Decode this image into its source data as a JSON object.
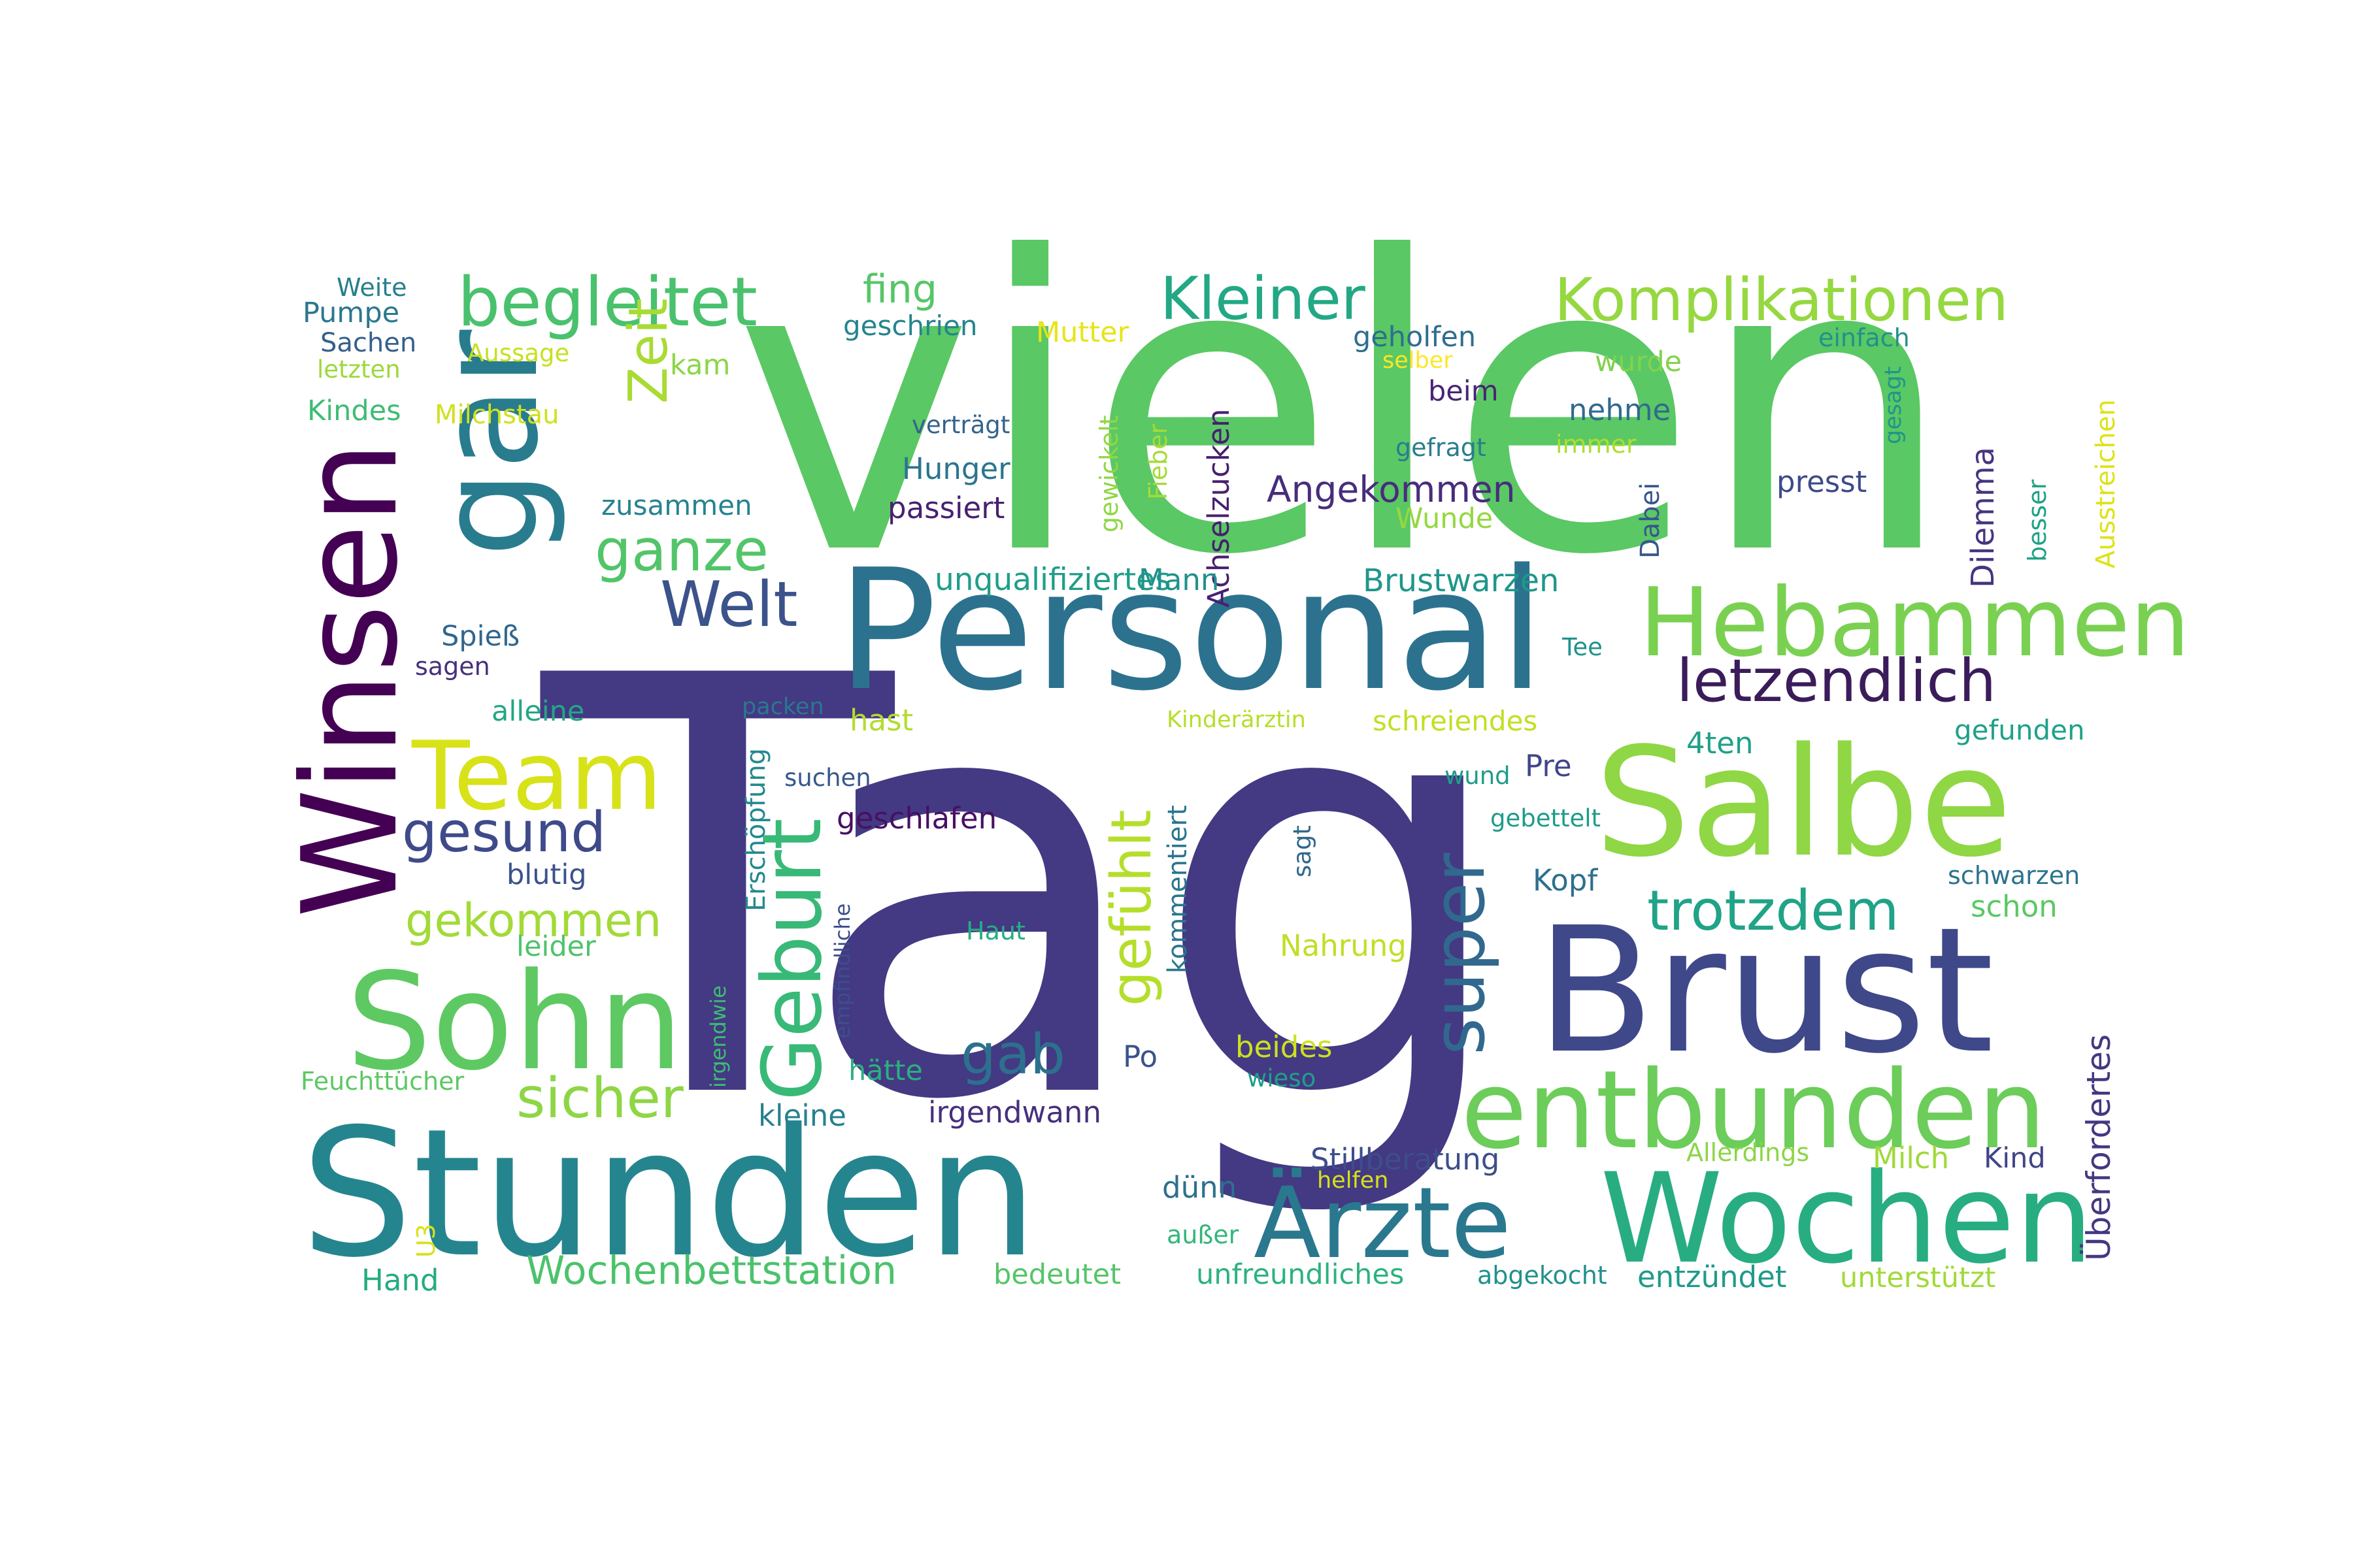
{
  "words": [
    {
      "text": "vielen",
      "color": "#5ac864"
    },
    {
      "text": "Tag",
      "color": "#443983"
    },
    {
      "text": "Personal",
      "color": "#2c728e"
    },
    {
      "text": "Stunden",
      "color": "#25858e"
    },
    {
      "text": "Brust",
      "color": "#3f4889"
    },
    {
      "text": "Salbe",
      "color": "#8fd744"
    },
    {
      "text": "Wochen",
      "color": "#27ad81"
    },
    {
      "text": "entbunden",
      "color": "#6ccd5a"
    },
    {
      "text": "Sohn",
      "color": "#5ec962"
    },
    {
      "text": "Hebammen",
      "color": "#7ad151"
    },
    {
      "text": "Winsen",
      "color": "#440154"
    },
    {
      "text": "gar",
      "color": "#287c8e"
    },
    {
      "text": "Ärzte",
      "color": "#2a788e"
    },
    {
      "text": "Team",
      "color": "#d8e219"
    },
    {
      "text": "Geburt",
      "color": "#38b977"
    },
    {
      "text": "super",
      "color": "#31688e"
    },
    {
      "text": "gefühlt",
      "color": "#b5de2b"
    },
    {
      "text": "begleitet",
      "color": "#4ac16d"
    },
    {
      "text": "Kleiner",
      "color": "#22a884"
    },
    {
      "text": "Komplikationen",
      "color": "#95d840"
    },
    {
      "text": "letzendlich",
      "color": "#3b1c5a"
    },
    {
      "text": "trotzdem",
      "color": "#20a386"
    },
    {
      "text": "gesund",
      "color": "#3e4a89"
    },
    {
      "text": "Welt",
      "color": "#3b528b"
    },
    {
      "text": "ganze",
      "color": "#52c569"
    },
    {
      "text": "Zeit",
      "color": "#a8db34"
    },
    {
      "text": "sicher",
      "color": "#8ed645"
    },
    {
      "text": "gekommen",
      "color": "#a2da37"
    },
    {
      "text": "gab",
      "color": "#2d708e"
    },
    {
      "text": "Wochenbettstation",
      "color": "#4cc26c"
    },
    {
      "text": "Überfordertes",
      "color": "#453781"
    },
    {
      "text": "Dilemma",
      "color": "#463480"
    },
    {
      "text": "Angekommen",
      "color": "#472d7b"
    },
    {
      "text": "Brustwarzen",
      "color": "#1f968b"
    },
    {
      "text": "unqualifiziertes",
      "color": "#1f9e89"
    },
    {
      "text": "Achselzucken",
      "color": "#481f70"
    },
    {
      "text": "Stillberatung",
      "color": "#3d4e8a"
    },
    {
      "text": "irgendwann",
      "color": "#472f7d"
    },
    {
      "text": "Erschöpfung",
      "color": "#23898e"
    },
    {
      "text": "kommentiert",
      "color": "#2a768e"
    },
    {
      "text": "unfreundliches",
      "color": "#2db27d"
    },
    {
      "text": "unterstützt",
      "color": "#a0da39"
    },
    {
      "text": "entzündet",
      "color": "#1f9a8a"
    },
    {
      "text": "schreiendes",
      "color": "#c2df23"
    },
    {
      "text": "geschlafen",
      "color": "#471063"
    },
    {
      "text": "Kinderärztin",
      "color": "#b8de29"
    },
    {
      "text": "Ausstreichen",
      "color": "#dde318"
    },
    {
      "text": "geschrien",
      "color": "#25848e"
    },
    {
      "text": "gewickelt",
      "color": "#90d743"
    },
    {
      "text": "empfindliche",
      "color": "#3c4f8a"
    },
    {
      "text": "irgendwie",
      "color": "#3dbc74"
    },
    {
      "text": "Feuchttücher",
      "color": "#5cc863"
    },
    {
      "text": "Allerdings",
      "color": "#8bd646"
    },
    {
      "text": "zusammen",
      "color": "#26828e"
    },
    {
      "text": "Milchstau",
      "color": "#d0e11c"
    },
    {
      "text": "bedeutet",
      "color": "#54c568"
    },
    {
      "text": "abgekocht",
      "color": "#21918c"
    },
    {
      "text": "gefunden",
      "color": "#1fa188"
    },
    {
      "text": "schwarzen",
      "color": "#2c738e"
    },
    {
      "text": "gebettelt",
      "color": "#1e9b8a"
    },
    {
      "text": "passiert",
      "color": "#482071"
    },
    {
      "text": "geholfen",
      "color": "#2e6e8e"
    },
    {
      "text": "verträgt",
      "color": "#33638d"
    },
    {
      "text": "Hunger",
      "color": "#2b758e"
    },
    {
      "text": "Nahrung",
      "color": "#c0df25"
    },
    {
      "text": "Kindes",
      "color": "#3fbc73"
    },
    {
      "text": "Fieber",
      "color": "#a5db36"
    },
    {
      "text": "Mutter",
      "color": "#e7e419"
    },
    {
      "text": "einfach",
      "color": "#21918c"
    },
    {
      "text": "gefragt",
      "color": "#287d8e"
    },
    {
      "text": "alleine",
      "color": "#22a785"
    },
    {
      "text": "nehme",
      "color": "#306a8e"
    },
    {
      "text": "presst",
      "color": "#3e4a89"
    },
    {
      "text": "wurde",
      "color": "#81d34d"
    },
    {
      "text": "besser",
      "color": "#1fa287"
    },
    {
      "text": "immer",
      "color": "#b0dd2f"
    },
    {
      "text": "helfen",
      "color": "#d5e21a"
    },
    {
      "text": "packen",
      "color": "#2a788e"
    },
    {
      "text": "suchen",
      "color": "#38588c"
    },
    {
      "text": "leider",
      "color": "#4ec36b"
    },
    {
      "text": "blutig",
      "color": "#3b528b"
    },
    {
      "text": "Aussage",
      "color": "#c8e020"
    },
    {
      "text": "Sachen",
      "color": "#355f8d"
    },
    {
      "text": "letzten",
      "color": "#9bd93c"
    },
    {
      "text": "Pumpe",
      "color": "#2a788e"
    },
    {
      "text": "Weite",
      "color": "#277f8e"
    },
    {
      "text": "Spieß",
      "color": "#31668e"
    },
    {
      "text": "sagen",
      "color": "#46307e"
    },
    {
      "text": "fing",
      "color": "#56c667"
    },
    {
      "text": "kam",
      "color": "#8ad647"
    },
    {
      "text": "beim",
      "color": "#482475"
    },
    {
      "text": "selber",
      "color": "#fde725"
    },
    {
      "text": "Dabei",
      "color": "#39568c"
    },
    {
      "text": "gesagt",
      "color": "#1f958b"
    },
    {
      "text": "Mann",
      "color": "#21918c"
    },
    {
      "text": "Wunde",
      "color": "#95d840"
    },
    {
      "text": "Tee",
      "color": "#20928c"
    },
    {
      "text": "4ten",
      "color": "#1fa088"
    },
    {
      "text": "hast",
      "color": "#b2dd2d"
    },
    {
      "text": "Pre",
      "color": "#404688"
    },
    {
      "text": "wund",
      "color": "#1e9c89"
    },
    {
      "text": "sagt",
      "color": "#31688e"
    },
    {
      "text": "Kopf",
      "color": "#2e6f8e"
    },
    {
      "text": "schon",
      "color": "#5ac864"
    },
    {
      "text": "Haut",
      "color": "#27ad81"
    },
    {
      "text": "beides",
      "color": "#cde11d"
    },
    {
      "text": "wieso",
      "color": "#1f9e89"
    },
    {
      "text": "Po",
      "color": "#3b528b"
    },
    {
      "text": "hätte",
      "color": "#2ab07f"
    },
    {
      "text": "kleine",
      "color": "#26818e"
    },
    {
      "text": "dünn",
      "color": "#2d708e"
    },
    {
      "text": "außer",
      "color": "#32b67a"
    },
    {
      "text": "Milch",
      "color": "#9fda3a"
    },
    {
      "text": "Kind",
      "color": "#414487"
    },
    {
      "text": "U3",
      "color": "#d8e219"
    },
    {
      "text": "Hand",
      "color": "#25ab82"
    }
  ]
}
